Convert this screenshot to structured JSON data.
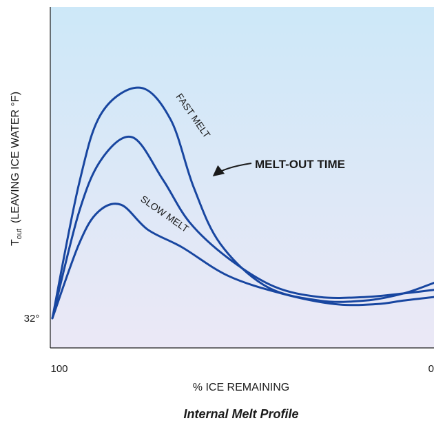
{
  "chart_data": {
    "type": "line",
    "title": "Internal Melt Profile",
    "xlabel": "% ICE REMAINING",
    "ylabel_main": "T",
    "ylabel_sub": "out",
    "ylabel_rest": "(LEAVING ICE WATER °F)",
    "x_tick_labels": [
      "100",
      "0"
    ],
    "xlim": [
      100,
      0
    ],
    "y_tick_label": "32°",
    "y_tick_value": 32,
    "grid": false,
    "background_gradient": [
      "#cde8f8",
      "#ebe8f6"
    ],
    "curve_color": "#1846a0",
    "annotations": [
      {
        "text": "FAST MELT",
        "target": "top curve"
      },
      {
        "text": "SLOW MELT",
        "target": "bottom curve"
      },
      {
        "text": "MELT-OUT TIME",
        "style": "bold",
        "arrow": true
      }
    ],
    "series": [
      {
        "values_x": [
          100,
          93,
          87,
          77,
          69,
          63,
          56,
          44,
          30,
          18,
          8,
          0
        ],
        "values_y": [
          32,
          70,
          90,
          97,
          88,
          69,
          53,
          41,
          37,
          37,
          39,
          42
        ]
      },
      {
        "values_x": [
          100,
          93,
          87,
          79,
          71,
          64,
          54,
          42,
          30,
          18,
          8,
          0
        ],
        "values_y": [
          32,
          62,
          77,
          83,
          71,
          59,
          49,
          41,
          38,
          38,
          39,
          40
        ]
      },
      {
        "values_x": [
          100,
          93,
          88,
          82,
          75,
          66,
          54,
          40,
          26,
          15,
          8,
          0
        ],
        "values_y": [
          32,
          53,
          62,
          64,
          57,
          52,
          44,
          39,
          36,
          36,
          37,
          38
        ]
      }
    ]
  }
}
